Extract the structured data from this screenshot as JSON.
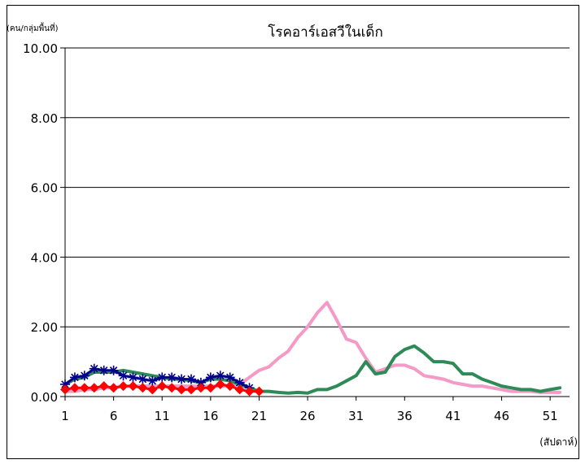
{
  "chart_data": {
    "type": "line",
    "title": "โรคอาร์เอสวีในเด็ก",
    "ylabel": "(คน/กลุ่มพื้นที่)",
    "xlabel": "(สัปดาห์)",
    "ylim": [
      0,
      10
    ],
    "xlim": [
      1,
      53
    ],
    "y_ticks": [
      "0.00",
      "2.00",
      "4.00",
      "6.00",
      "8.00",
      "10.00"
    ],
    "x_ticks": [
      "1",
      "6",
      "11",
      "16",
      "21",
      "26",
      "31",
      "36",
      "41",
      "46",
      "51"
    ],
    "grid": "horizontal",
    "series": [
      {
        "color": "#f59ac6",
        "marker": "none",
        "x": [
          1,
          2,
          3,
          4,
          5,
          6,
          7,
          8,
          9,
          10,
          11,
          12,
          13,
          14,
          15,
          16,
          17,
          18,
          19,
          20,
          21,
          22,
          23,
          24,
          25,
          26,
          27,
          28,
          29,
          30,
          31,
          32,
          33,
          34,
          35,
          36,
          37,
          38,
          39,
          40,
          41,
          42,
          43,
          44,
          45,
          46,
          47,
          48,
          49,
          50,
          51,
          52
        ],
        "values": [
          0.15,
          0.15,
          0.2,
          0.2,
          0.25,
          0.25,
          0.3,
          0.3,
          0.3,
          0.3,
          0.3,
          0.3,
          0.3,
          0.3,
          0.3,
          0.3,
          0.3,
          0.3,
          0.35,
          0.55,
          0.75,
          0.85,
          1.1,
          1.3,
          1.7,
          2.0,
          2.4,
          2.7,
          2.2,
          1.65,
          1.55,
          1.1,
          0.7,
          0.8,
          0.9,
          0.9,
          0.8,
          0.6,
          0.55,
          0.5,
          0.4,
          0.35,
          0.3,
          0.3,
          0.25,
          0.2,
          0.15,
          0.15,
          0.15,
          0.12,
          0.12,
          0.12
        ]
      },
      {
        "color": "#2e8b57",
        "marker": "none",
        "x": [
          1,
          2,
          3,
          4,
          5,
          6,
          7,
          8,
          9,
          10,
          11,
          12,
          13,
          14,
          15,
          16,
          17,
          18,
          19,
          20,
          21,
          22,
          23,
          24,
          25,
          26,
          27,
          28,
          29,
          30,
          31,
          32,
          33,
          34,
          35,
          36,
          37,
          38,
          39,
          40,
          41,
          42,
          43,
          44,
          45,
          46,
          47,
          48,
          49,
          50,
          51,
          52
        ],
        "values": [
          0.35,
          0.5,
          0.55,
          0.7,
          0.7,
          0.7,
          0.75,
          0.7,
          0.65,
          0.6,
          0.55,
          0.5,
          0.5,
          0.45,
          0.4,
          0.5,
          0.5,
          0.45,
          0.35,
          0.25,
          0.15,
          0.15,
          0.12,
          0.1,
          0.12,
          0.1,
          0.2,
          0.2,
          0.3,
          0.45,
          0.6,
          1.0,
          0.65,
          0.7,
          1.15,
          1.35,
          1.45,
          1.25,
          1.0,
          1.0,
          0.95,
          0.65,
          0.65,
          0.5,
          0.4,
          0.3,
          0.25,
          0.2,
          0.2,
          0.15,
          0.2,
          0.25
        ]
      },
      {
        "color": "#00008b",
        "marker": "star",
        "x": [
          1,
          2,
          3,
          4,
          5,
          6,
          7,
          8,
          9,
          10,
          11,
          12,
          13,
          14,
          15,
          16,
          17,
          18,
          19,
          20
        ],
        "values": [
          0.35,
          0.55,
          0.6,
          0.8,
          0.75,
          0.75,
          0.6,
          0.55,
          0.5,
          0.45,
          0.55,
          0.55,
          0.5,
          0.5,
          0.4,
          0.55,
          0.6,
          0.55,
          0.4,
          0.25
        ]
      },
      {
        "color": "#ff0000",
        "marker": "diamond",
        "x": [
          1,
          2,
          3,
          4,
          5,
          6,
          7,
          8,
          9,
          10,
          11,
          12,
          13,
          14,
          15,
          16,
          17,
          18,
          19,
          20,
          21
        ],
        "values": [
          0.2,
          0.25,
          0.25,
          0.25,
          0.3,
          0.25,
          0.3,
          0.3,
          0.25,
          0.2,
          0.3,
          0.25,
          0.2,
          0.2,
          0.25,
          0.25,
          0.35,
          0.3,
          0.2,
          0.15,
          0.15
        ]
      }
    ]
  }
}
